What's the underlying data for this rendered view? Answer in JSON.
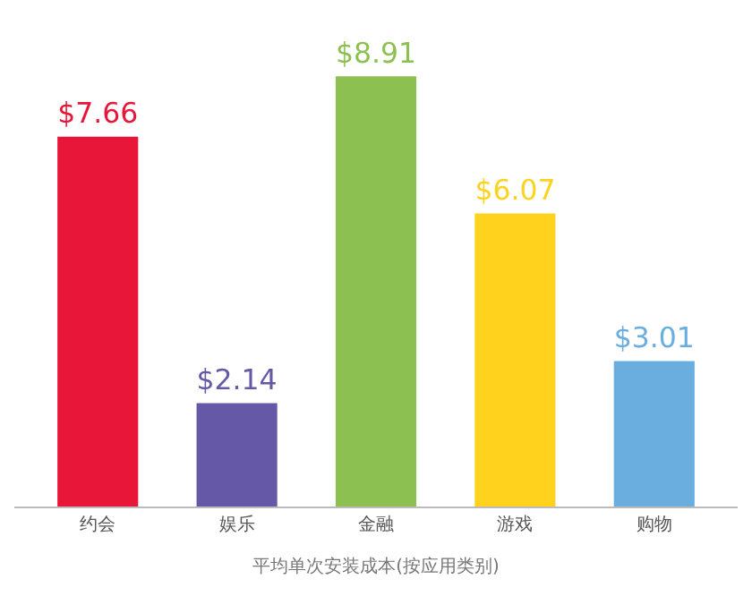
{
  "chart_data": {
    "type": "bar",
    "xlabel": "平均单次安装成本(按应用类别)",
    "categories": [
      "约会",
      "娱乐",
      "金融",
      "游戏",
      "购物"
    ],
    "values": [
      7.66,
      2.14,
      8.91,
      6.07,
      3.01
    ],
    "value_labels": [
      "$7.66",
      "$2.14",
      "$8.91",
      "$6.07",
      "$3.01"
    ],
    "colors": [
      "#e8173a",
      "#6558a6",
      "#8cc152",
      "#ffd21e",
      "#6aaee0"
    ]
  }
}
